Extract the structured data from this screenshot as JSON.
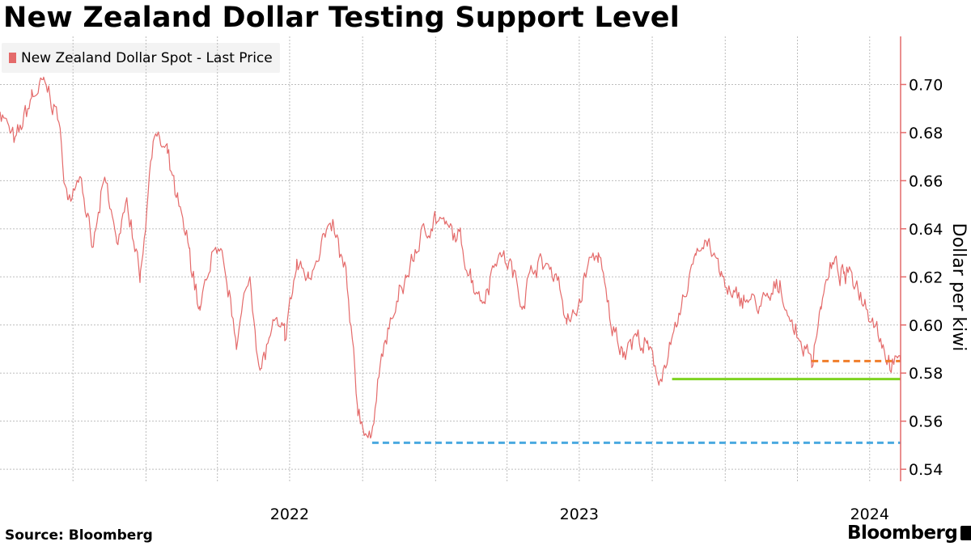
{
  "chart_data": {
    "type": "line",
    "title": "New Zealand Dollar Testing Support Level",
    "legend": [
      "New Zealand Dollar Spot - Last Price"
    ],
    "legend_position": "top-left",
    "ylabel": "Dollar per kiwi",
    "y_axis_side": "right",
    "ylim": [
      0.535,
      0.72
    ],
    "yticks": [
      0.54,
      0.56,
      0.58,
      0.6,
      0.62,
      0.64,
      0.66,
      0.68,
      0.7
    ],
    "ytick_labels": [
      "0.54",
      "0.56",
      "0.58",
      "0.60",
      "0.62",
      "0.64",
      "0.66",
      "0.68",
      "0.70"
    ],
    "xlim": [
      "2021-07-01",
      "2024-08-09"
    ],
    "xtick_labels": [
      {
        "label": "2022",
        "x": "2022-07-01"
      },
      {
        "label": "2023",
        "x": "2023-07-01"
      },
      {
        "label": "2024",
        "x": "2024-07-01"
      }
    ],
    "grid": true,
    "series": [
      {
        "name": "New Zealand Dollar Spot - Last Price",
        "color": "#e46a6a",
        "x": [
          "2021-07-01",
          "2021-07-20",
          "2021-08-10",
          "2021-08-25",
          "2021-09-10",
          "2021-09-25",
          "2021-10-10",
          "2021-10-25",
          "2021-11-10",
          "2021-11-25",
          "2021-12-10",
          "2021-12-25",
          "2022-01-10",
          "2022-01-28",
          "2022-02-10",
          "2022-02-25",
          "2022-03-10",
          "2022-03-25",
          "2022-04-08",
          "2022-04-25",
          "2022-05-12",
          "2022-05-25",
          "2022-06-10",
          "2022-06-25",
          "2022-07-10",
          "2022-07-25",
          "2022-08-10",
          "2022-08-25",
          "2022-09-10",
          "2022-09-25",
          "2022-10-12",
          "2022-10-20",
          "2022-11-05",
          "2022-11-25",
          "2022-12-12",
          "2022-12-31",
          "2023-01-15",
          "2023-02-01",
          "2023-02-15",
          "2023-03-01",
          "2023-03-20",
          "2023-04-05",
          "2023-04-20",
          "2023-05-05",
          "2023-05-20",
          "2023-06-05",
          "2023-06-15",
          "2023-06-28",
          "2023-07-12",
          "2023-07-25",
          "2023-08-10",
          "2023-08-25",
          "2023-09-10",
          "2023-09-25",
          "2023-10-10",
          "2023-10-25",
          "2023-11-10",
          "2023-11-25",
          "2023-12-10",
          "2023-12-27",
          "2024-01-10",
          "2024-01-25",
          "2024-02-10",
          "2024-02-25",
          "2024-03-10",
          "2024-03-25",
          "2024-04-10",
          "2024-04-19",
          "2024-05-01",
          "2024-05-15",
          "2024-05-30",
          "2024-06-10",
          "2024-06-25",
          "2024-07-10",
          "2024-07-25",
          "2024-08-05",
          "2024-08-09"
        ],
        "values": [
          0.69,
          0.675,
          0.695,
          0.7,
          0.69,
          0.65,
          0.665,
          0.63,
          0.66,
          0.635,
          0.65,
          0.62,
          0.68,
          0.67,
          0.65,
          0.63,
          0.605,
          0.63,
          0.625,
          0.595,
          0.62,
          0.58,
          0.6,
          0.595,
          0.625,
          0.62,
          0.635,
          0.64,
          0.62,
          0.565,
          0.55,
          0.58,
          0.6,
          0.62,
          0.635,
          0.645,
          0.64,
          0.635,
          0.62,
          0.61,
          0.63,
          0.625,
          0.61,
          0.625,
          0.625,
          0.62,
          0.6,
          0.605,
          0.625,
          0.63,
          0.6,
          0.59,
          0.595,
          0.59,
          0.578,
          0.59,
          0.61,
          0.632,
          0.635,
          0.62,
          0.61,
          0.612,
          0.608,
          0.61,
          0.617,
          0.6,
          0.59,
          0.585,
          0.61,
          0.625,
          0.62,
          0.62,
          0.61,
          0.6,
          0.585,
          0.583,
          0.585
        ]
      }
    ],
    "reference_lines": [
      {
        "value": 0.551,
        "x_start": "2022-10-13",
        "x_end": "2024-08-09",
        "style": "dashed",
        "color": "#4aa9e0"
      },
      {
        "value": 0.5775,
        "x_start": "2023-10-26",
        "x_end": "2024-08-09",
        "style": "solid",
        "color": "#7ed321"
      },
      {
        "value": 0.585,
        "x_start": "2024-04-19",
        "x_end": "2024-08-09",
        "style": "dashed",
        "color": "#f07d2a"
      }
    ],
    "colors": {
      "axis": "#e46a6a",
      "grid": "#bdbdbd"
    }
  },
  "source": "Source: Bloomberg",
  "brand": "Bloomberg"
}
